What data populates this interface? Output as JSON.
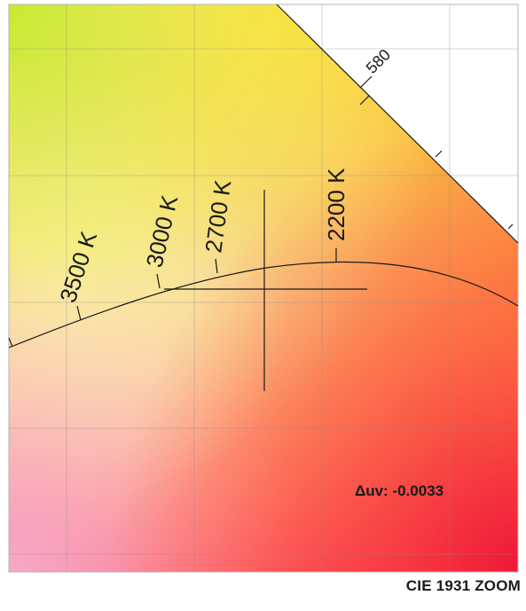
{
  "title": "CIE 1931 ZOOM",
  "readout": {
    "duv_label": "Δuv: -0.0033"
  },
  "locus": {
    "wavelength_label": "580"
  },
  "isotherms": [
    {
      "label": "3500 K"
    },
    {
      "label": "3000 K"
    },
    {
      "label": "2700 K"
    },
    {
      "label": "2200 K"
    }
  ]
}
